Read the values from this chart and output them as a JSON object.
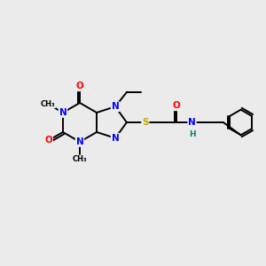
{
  "bg_color": "#ebebeb",
  "atom_colors": {
    "C": "#000000",
    "N": "#0000ff",
    "O": "#ff0000",
    "S": "#bbaa00",
    "H": "#008080"
  },
  "figsize": [
    3.0,
    3.0
  ],
  "dpi": 100
}
